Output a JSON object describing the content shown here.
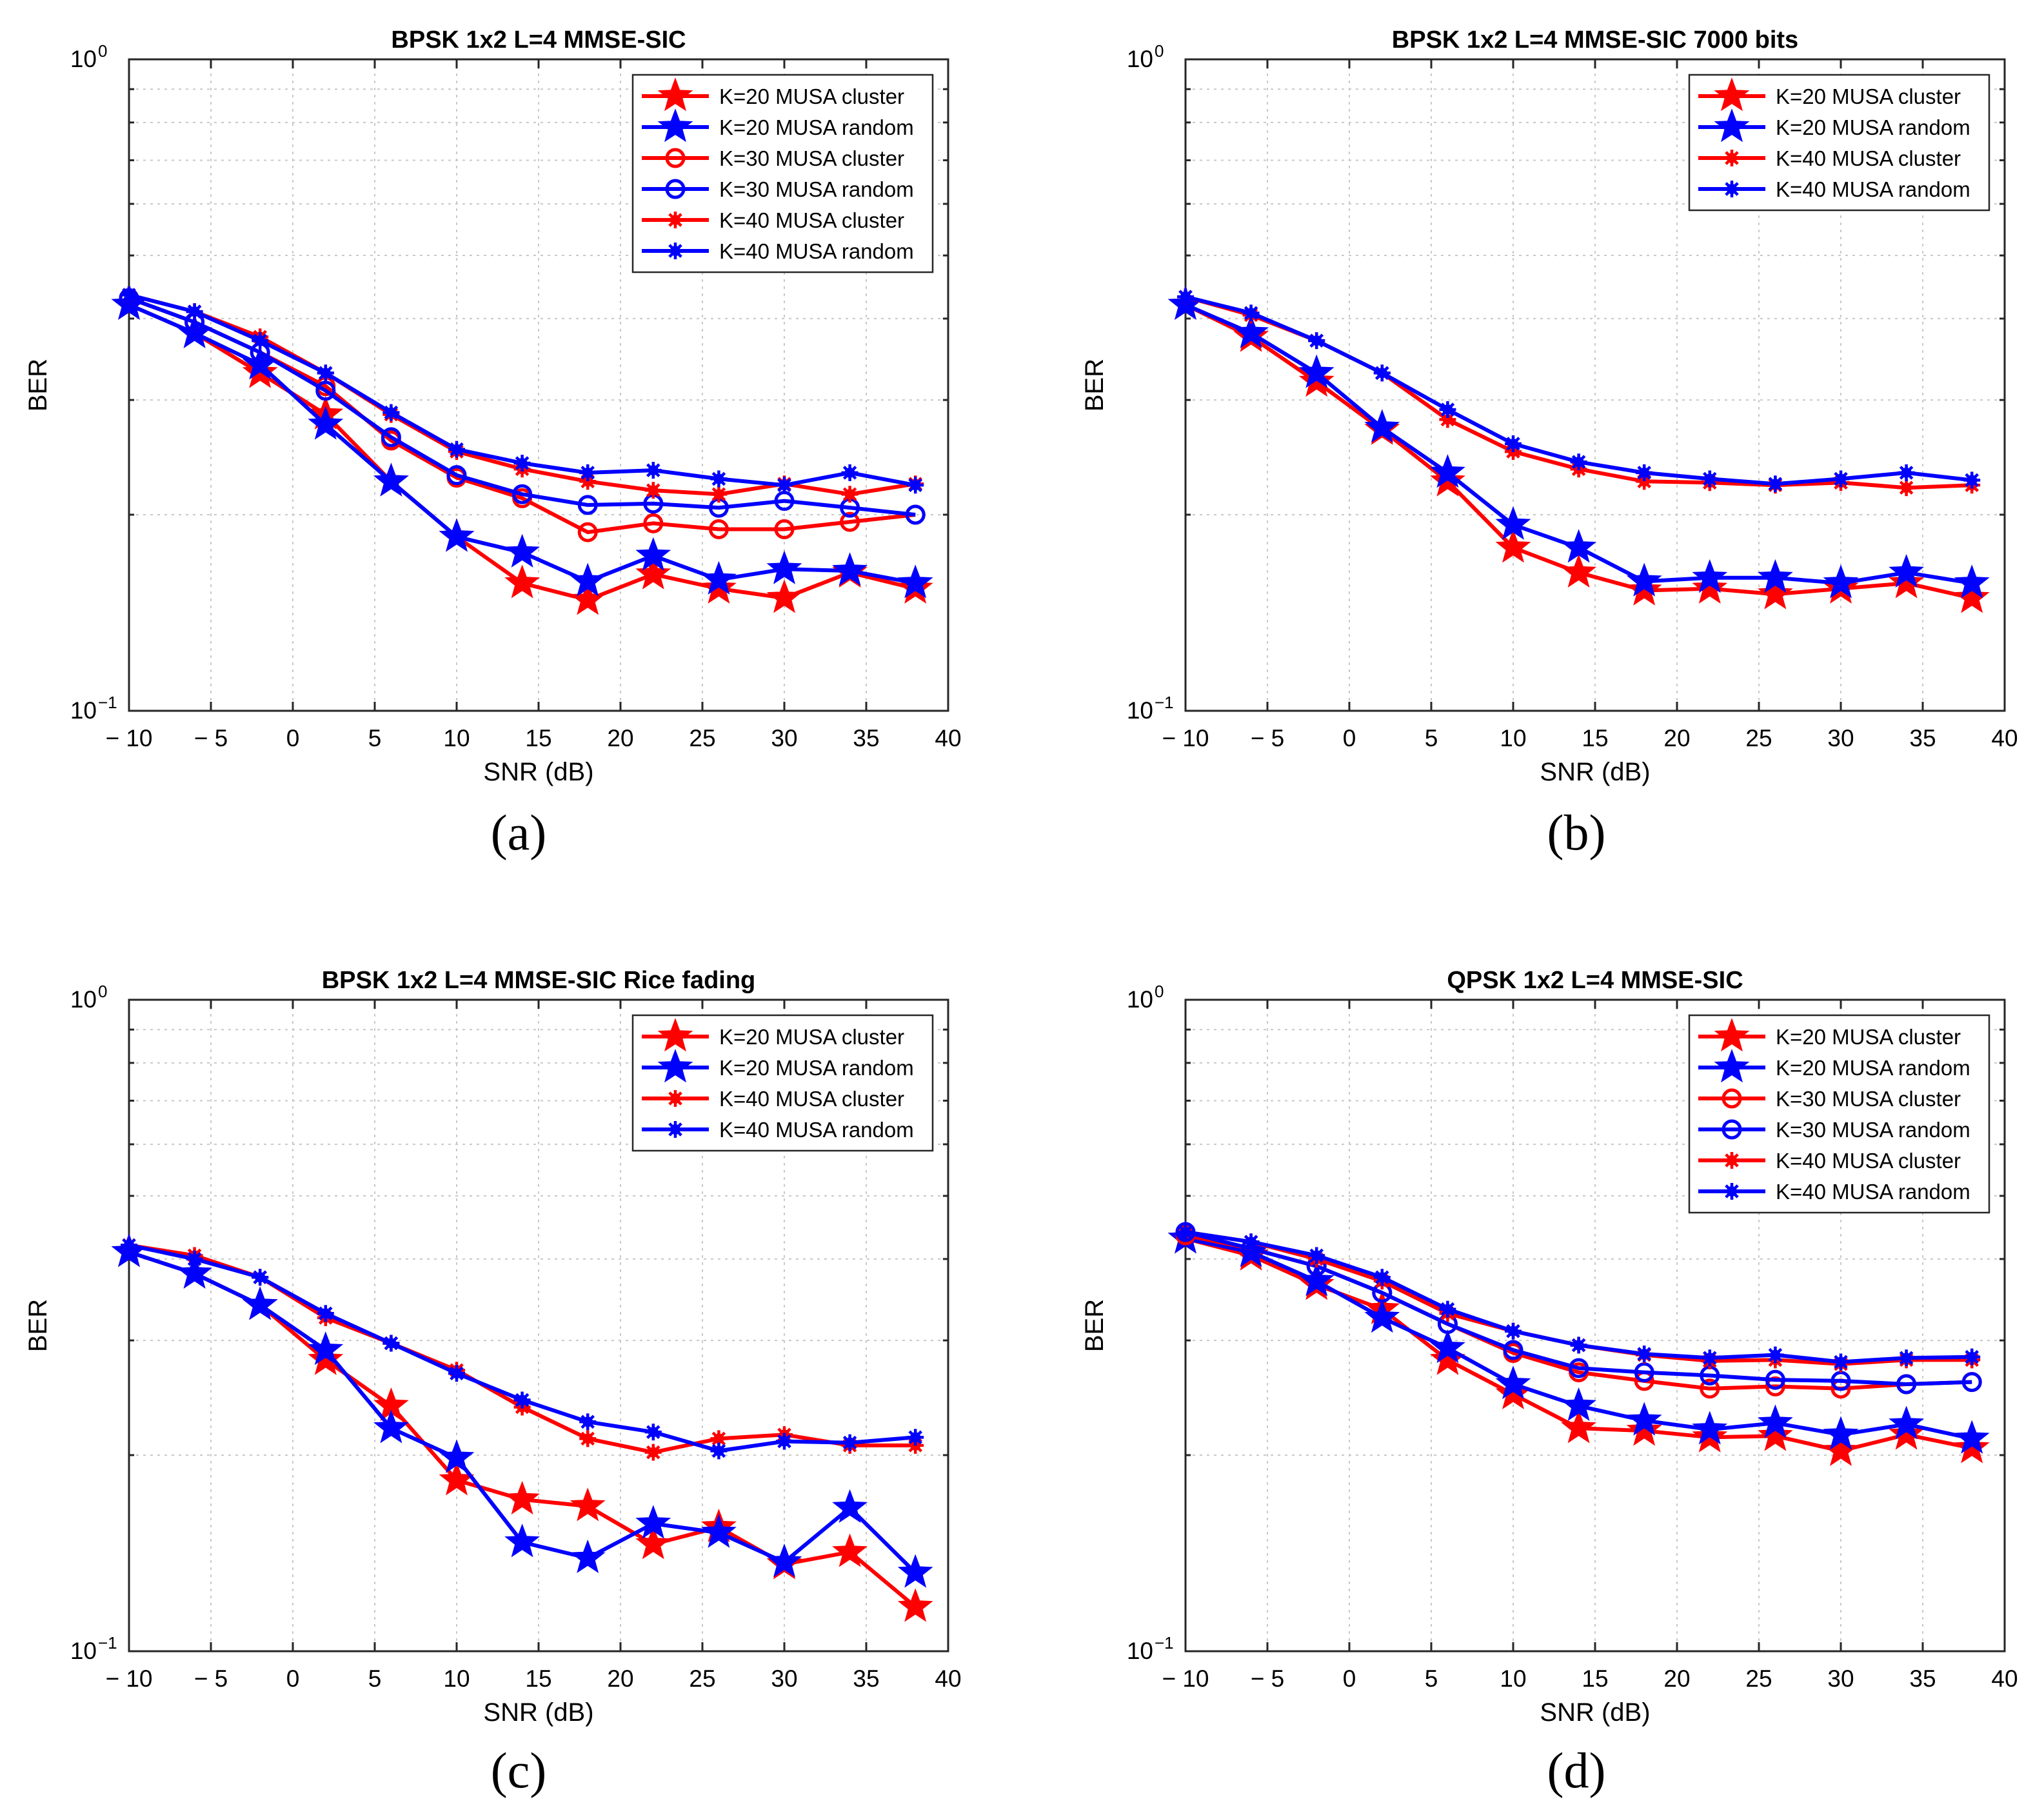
{
  "colors": {
    "red": "#ff0000",
    "blue": "#0000ff",
    "grid": "#c8c8c8",
    "axis": "#262626"
  },
  "panel_labels": [
    "(a)",
    "(b)",
    "(c)",
    "(d)"
  ],
  "chart_data": [
    {
      "type": "line",
      "title": "BPSK 1x2 L=4 MMSE-SIC",
      "xlabel": "SNR (dB)",
      "ylabel": "BER",
      "xlim": [
        -10,
        40
      ],
      "ylim": [
        0.1,
        1
      ],
      "yscale": "log",
      "grid": true,
      "legend_location": "top-right",
      "xticks": [
        -10,
        -5,
        0,
        5,
        10,
        15,
        20,
        25,
        30,
        35,
        40
      ],
      "xtick_labels": [
        "− 10",
        "− 5",
        "0",
        "5",
        "10",
        "15",
        "20",
        "25",
        "30",
        "35",
        "40"
      ],
      "ytick_labels": [
        {
          "base": "10",
          "exp": "0"
        },
        {
          "base": "10",
          "exp": "−1"
        }
      ],
      "x": [
        -10,
        -6,
        -2,
        2,
        6,
        10,
        14,
        18,
        22,
        26,
        30,
        34,
        38
      ],
      "series": [
        {
          "name": "K=20 MUSA cluster",
          "color": "red",
          "marker": "star",
          "values": [
            0.42,
            0.38,
            0.33,
            0.285,
            0.225,
            0.185,
            0.157,
            0.148,
            0.162,
            0.154,
            0.149,
            0.163,
            0.154
          ]
        },
        {
          "name": "K=20 MUSA random",
          "color": "blue",
          "marker": "star",
          "values": [
            0.42,
            0.38,
            0.34,
            0.275,
            0.225,
            0.185,
            0.175,
            0.158,
            0.173,
            0.159,
            0.165,
            0.164,
            0.157
          ]
        },
        {
          "name": "K=30 MUSA cluster",
          "color": "red",
          "marker": "circle",
          "values": [
            0.43,
            0.395,
            0.355,
            0.315,
            0.26,
            0.228,
            0.212,
            0.188,
            0.194,
            0.19,
            0.19,
            0.195,
            0.2
          ]
        },
        {
          "name": "K=30 MUSA random",
          "color": "blue",
          "marker": "circle",
          "values": [
            0.43,
            0.395,
            0.355,
            0.31,
            0.263,
            0.23,
            0.215,
            0.207,
            0.208,
            0.205,
            0.21,
            0.205,
            0.2
          ]
        },
        {
          "name": "K=40 MUSA cluster",
          "color": "red",
          "marker": "asterisk",
          "values": [
            0.435,
            0.41,
            0.375,
            0.33,
            0.285,
            0.25,
            0.235,
            0.225,
            0.218,
            0.215,
            0.223,
            0.215,
            0.223
          ]
        },
        {
          "name": "K=40 MUSA random",
          "color": "blue",
          "marker": "asterisk",
          "values": [
            0.435,
            0.41,
            0.37,
            0.33,
            0.287,
            0.252,
            0.24,
            0.232,
            0.234,
            0.227,
            0.222,
            0.232,
            0.222
          ]
        }
      ]
    },
    {
      "type": "line",
      "title": "BPSK 1x2 L=4 MMSE-SIC 7000 bits",
      "xlabel": "SNR (dB)",
      "ylabel": "BER",
      "xlim": [
        -10,
        40
      ],
      "ylim": [
        0.1,
        1
      ],
      "yscale": "log",
      "grid": true,
      "legend_location": "top-right",
      "xticks": [
        -10,
        -5,
        0,
        5,
        10,
        15,
        20,
        25,
        30,
        35,
        40
      ],
      "xtick_labels": [
        "− 10",
        "− 5",
        "0",
        "5",
        "10",
        "15",
        "20",
        "25",
        "30",
        "35",
        "40"
      ],
      "ytick_labels": [
        {
          "base": "10",
          "exp": "0"
        },
        {
          "base": "10",
          "exp": "−1"
        }
      ],
      "x": [
        -10,
        -6,
        -2,
        2,
        6,
        10,
        14,
        18,
        22,
        26,
        30,
        34,
        38
      ],
      "series": [
        {
          "name": "K=20 MUSA cluster",
          "color": "red",
          "marker": "star",
          "values": [
            0.42,
            0.375,
            0.32,
            0.27,
            0.225,
            0.178,
            0.163,
            0.153,
            0.154,
            0.151,
            0.154,
            0.157,
            0.149
          ]
        },
        {
          "name": "K=20 MUSA random",
          "color": "blue",
          "marker": "star",
          "values": [
            0.42,
            0.38,
            0.33,
            0.272,
            0.232,
            0.193,
            0.178,
            0.158,
            0.16,
            0.16,
            0.157,
            0.163,
            0.157
          ]
        },
        {
          "name": "K=40 MUSA cluster",
          "color": "red",
          "marker": "asterisk",
          "values": [
            0.432,
            0.405,
            0.37,
            0.33,
            0.28,
            0.25,
            0.235,
            0.225,
            0.224,
            0.222,
            0.224,
            0.22,
            0.222
          ]
        },
        {
          "name": "K=40 MUSA random",
          "color": "blue",
          "marker": "asterisk",
          "values": [
            0.432,
            0.408,
            0.37,
            0.33,
            0.29,
            0.257,
            0.241,
            0.232,
            0.227,
            0.223,
            0.227,
            0.232,
            0.226
          ]
        }
      ]
    },
    {
      "type": "line",
      "title": "BPSK 1x2 L=4 MMSE-SIC Rice fading",
      "xlabel": "SNR (dB)",
      "ylabel": "BER",
      "xlim": [
        -10,
        40
      ],
      "ylim": [
        0.1,
        1
      ],
      "yscale": "log",
      "grid": true,
      "legend_location": "top-right",
      "xticks": [
        -10,
        -5,
        0,
        5,
        10,
        15,
        20,
        25,
        30,
        35,
        40
      ],
      "xtick_labels": [
        "− 10",
        "− 5",
        "0",
        "5",
        "10",
        "15",
        "20",
        "25",
        "30",
        "35",
        "40"
      ],
      "ytick_labels": [
        {
          "base": "10",
          "exp": "0"
        },
        {
          "base": "10",
          "exp": "−1"
        }
      ],
      "x": [
        -10,
        -6,
        -2,
        2,
        6,
        10,
        14,
        18,
        22,
        26,
        30,
        34,
        38
      ],
      "series": [
        {
          "name": "K=20 MUSA cluster",
          "color": "red",
          "marker": "star",
          "values": [
            0.41,
            0.38,
            0.34,
            0.28,
            0.238,
            0.183,
            0.171,
            0.167,
            0.146,
            0.155,
            0.136,
            0.142,
            0.117
          ]
        },
        {
          "name": "K=20 MUSA random",
          "color": "blue",
          "marker": "star",
          "values": [
            0.41,
            0.38,
            0.34,
            0.29,
            0.22,
            0.198,
            0.147,
            0.139,
            0.157,
            0.152,
            0.137,
            0.166,
            0.132
          ]
        },
        {
          "name": "K=40 MUSA cluster",
          "color": "red",
          "marker": "asterisk",
          "values": [
            0.42,
            0.405,
            0.375,
            0.325,
            0.297,
            0.27,
            0.237,
            0.212,
            0.202,
            0.212,
            0.215,
            0.207,
            0.207
          ]
        },
        {
          "name": "K=40 MUSA random",
          "color": "blue",
          "marker": "asterisk",
          "values": [
            0.42,
            0.4,
            0.375,
            0.33,
            0.297,
            0.267,
            0.243,
            0.225,
            0.217,
            0.203,
            0.21,
            0.209,
            0.213
          ]
        }
      ]
    },
    {
      "type": "line",
      "title": "QPSK 1x2 L=4 MMSE-SIC",
      "xlabel": "SNR (dB)",
      "ylabel": "BER",
      "xlim": [
        -10,
        40
      ],
      "ylim": [
        0.1,
        1
      ],
      "yscale": "log",
      "grid": true,
      "legend_location": "top-right",
      "xticks": [
        -10,
        -5,
        0,
        5,
        10,
        15,
        20,
        25,
        30,
        35,
        40
      ],
      "xtick_labels": [
        "− 10",
        "− 5",
        "0",
        "5",
        "10",
        "15",
        "20",
        "25",
        "30",
        "35",
        "40"
      ],
      "ytick_labels": [
        {
          "base": "10",
          "exp": "0"
        },
        {
          "base": "10",
          "exp": "−1"
        }
      ],
      "x": [
        -10,
        -6,
        -2,
        2,
        6,
        10,
        14,
        18,
        22,
        26,
        30,
        34,
        38
      ],
      "series": [
        {
          "name": "K=20 MUSA cluster",
          "color": "red",
          "marker": "star",
          "values": [
            0.43,
            0.405,
            0.365,
            0.335,
            0.28,
            0.248,
            0.22,
            0.218,
            0.213,
            0.214,
            0.203,
            0.215,
            0.205
          ]
        },
        {
          "name": "K=20 MUSA random",
          "color": "blue",
          "marker": "star",
          "values": [
            0.43,
            0.41,
            0.37,
            0.325,
            0.292,
            0.257,
            0.238,
            0.226,
            0.219,
            0.224,
            0.215,
            0.223,
            0.212
          ]
        },
        {
          "name": "K=30 MUSA cluster",
          "color": "red",
          "marker": "circle",
          "values": [
            0.435,
            0.415,
            0.39,
            0.355,
            0.318,
            0.287,
            0.268,
            0.26,
            0.253,
            0.255,
            0.253,
            0.257,
            0.259
          ]
        },
        {
          "name": "K=30 MUSA random",
          "color": "blue",
          "marker": "circle",
          "values": [
            0.44,
            0.415,
            0.39,
            0.355,
            0.318,
            0.29,
            0.272,
            0.268,
            0.265,
            0.261,
            0.26,
            0.257,
            0.259
          ]
        },
        {
          "name": "K=40 MUSA cluster",
          "color": "red",
          "marker": "asterisk",
          "values": [
            0.44,
            0.425,
            0.4,
            0.37,
            0.33,
            0.31,
            0.295,
            0.285,
            0.279,
            0.28,
            0.276,
            0.28,
            0.28
          ]
        },
        {
          "name": "K=40 MUSA random",
          "color": "blue",
          "marker": "asterisk",
          "values": [
            0.44,
            0.425,
            0.405,
            0.375,
            0.335,
            0.31,
            0.295,
            0.286,
            0.282,
            0.285,
            0.278,
            0.282,
            0.283
          ]
        }
      ]
    }
  ]
}
